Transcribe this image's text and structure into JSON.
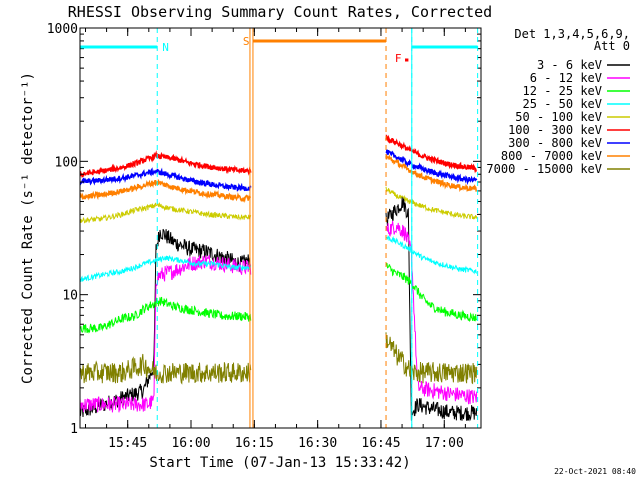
{
  "chart_data": {
    "type": "line",
    "title": "RHESSI Observing Summary Count Rates, Corrected",
    "xlabel": "Start Time (07-Jan-13 15:33:42)",
    "ylabel": "Corrected Count Rate (s⁻¹ detector⁻¹)",
    "yscale": "log",
    "ylim": [
      1,
      1000
    ],
    "xlim": [
      0,
      95
    ],
    "x_tick_labels": [
      {
        "x": 11.3,
        "label": "15:45"
      },
      {
        "x": 26.3,
        "label": "16:00"
      },
      {
        "x": 41.3,
        "label": "16:15"
      },
      {
        "x": 56.3,
        "label": "16:30"
      },
      {
        "x": 71.3,
        "label": "16:45"
      },
      {
        "x": 86.3,
        "label": "17:00"
      }
    ],
    "y_tick_labels": [
      {
        "y": 1,
        "label": "1"
      },
      {
        "y": 10,
        "label": "10"
      },
      {
        "y": 100,
        "label": "100"
      },
      {
        "y": 1000,
        "label": "1000"
      }
    ],
    "legend_header": [
      "Det 1,3,4,5,6,9,",
      "Att 0"
    ],
    "timestamp": "22-Oct-2021 08:40",
    "segments": [
      [
        0,
        40.5
      ],
      [
        72.5,
        94
      ]
    ],
    "annotations": [
      {
        "type": "cyan",
        "x": [
          0,
          18.3
        ],
        "label": "N",
        "label_x": 19.5
      },
      {
        "type": "orange",
        "x": [
          40.5,
          72.5
        ],
        "label": "S",
        "label_x": 38.6
      },
      {
        "type": "cyan",
        "x": [
          78.6,
          94.2
        ],
        "label": "",
        "label_x": 0
      },
      {
        "type": "red",
        "x": [
          77.0,
          77.8
        ],
        "label": "F",
        "label_x": 74.6
      }
    ],
    "series": [
      {
        "name": "3 - 6 keV",
        "color": "#000000",
        "points": [
          [
            0,
            1.3
          ],
          [
            15,
            1.9
          ],
          [
            17.5,
            2.9
          ],
          [
            18,
            22
          ],
          [
            19,
            30
          ],
          [
            22,
            25
          ],
          [
            26,
            22
          ],
          [
            30,
            21
          ],
          [
            34,
            19
          ],
          [
            38,
            17
          ],
          [
            40,
            18
          ],
          [
            72.5,
            36
          ],
          [
            75,
            44
          ],
          [
            76.5,
            50
          ],
          [
            77.8,
            40
          ],
          [
            78.5,
            1.3
          ],
          [
            80,
            1.5
          ],
          [
            83,
            1.4
          ],
          [
            88,
            1.3
          ],
          [
            94,
            1.3
          ]
        ]
      },
      {
        "name": "6 - 12 keV",
        "color": "#ff00ff",
        "points": [
          [
            0,
            1.5
          ],
          [
            13,
            1.5
          ],
          [
            16,
            1.5
          ],
          [
            17.5,
            1.6
          ],
          [
            18,
            13
          ],
          [
            19,
            14
          ],
          [
            22,
            15
          ],
          [
            26,
            17
          ],
          [
            30,
            18
          ],
          [
            34,
            17
          ],
          [
            38,
            16
          ],
          [
            40,
            16
          ],
          [
            72.5,
            30
          ],
          [
            75,
            33
          ],
          [
            77,
            29
          ],
          [
            78.5,
            21
          ],
          [
            80,
            2.0
          ],
          [
            88,
            1.8
          ],
          [
            94,
            1.7
          ]
        ]
      },
      {
        "name": "12 - 25 keV",
        "color": "#00ff00",
        "points": [
          [
            0,
            5.6
          ],
          [
            5,
            5.6
          ],
          [
            7,
            6.0
          ],
          [
            10,
            6.6
          ],
          [
            13,
            6.9
          ],
          [
            15,
            7.8
          ],
          [
            17,
            8.4
          ],
          [
            19,
            9.0
          ],
          [
            22,
            8.2
          ],
          [
            26,
            7.7
          ],
          [
            30,
            7.3
          ],
          [
            34,
            6.9
          ],
          [
            38,
            6.9
          ],
          [
            40,
            6.8
          ],
          [
            72.5,
            16.5
          ],
          [
            75,
            14.3
          ],
          [
            77,
            13.4
          ],
          [
            79,
            11.8
          ],
          [
            81,
            9.5
          ],
          [
            83,
            8.3
          ],
          [
            86,
            7.5
          ],
          [
            90,
            7.0
          ],
          [
            94,
            6.7
          ]
        ]
      },
      {
        "name": "25 - 50 keV",
        "color": "#00ffff",
        "points": [
          [
            0,
            13
          ],
          [
            5,
            14
          ],
          [
            10,
            15
          ],
          [
            13,
            16
          ],
          [
            15,
            17
          ],
          [
            18,
            18
          ],
          [
            20,
            19
          ],
          [
            24,
            18
          ],
          [
            28,
            17
          ],
          [
            32,
            17
          ],
          [
            36,
            16
          ],
          [
            40,
            16
          ],
          [
            72.5,
            27
          ],
          [
            75,
            25
          ],
          [
            77,
            23
          ],
          [
            79,
            21
          ],
          [
            81,
            19
          ],
          [
            84,
            17.5
          ],
          [
            87,
            16.5
          ],
          [
            90,
            15.5
          ],
          [
            94,
            15
          ]
        ]
      },
      {
        "name": "50 - 100 keV",
        "color": "#cccc00",
        "points": [
          [
            0,
            36
          ],
          [
            5,
            37
          ],
          [
            10,
            40
          ],
          [
            13,
            43
          ],
          [
            16,
            45
          ],
          [
            18,
            47
          ],
          [
            22,
            44
          ],
          [
            26,
            42
          ],
          [
            30,
            40
          ],
          [
            34,
            39
          ],
          [
            38,
            38
          ],
          [
            40,
            38
          ],
          [
            72.5,
            62
          ],
          [
            75,
            55
          ],
          [
            78,
            50
          ],
          [
            81,
            46
          ],
          [
            84,
            43
          ],
          [
            87,
            41
          ],
          [
            90,
            39
          ],
          [
            94,
            38
          ]
        ]
      },
      {
        "name": "100 - 300 keV",
        "color": "#ff0000",
        "points": [
          [
            0,
            80
          ],
          [
            5,
            84
          ],
          [
            10,
            90
          ],
          [
            13,
            96
          ],
          [
            16,
            104
          ],
          [
            18,
            110
          ],
          [
            22,
            105
          ],
          [
            26,
            97
          ],
          [
            30,
            92
          ],
          [
            34,
            88
          ],
          [
            38,
            85
          ],
          [
            40,
            85
          ],
          [
            72.5,
            150
          ],
          [
            75,
            138
          ],
          [
            78,
            122
          ],
          [
            81,
            110
          ],
          [
            84,
            102
          ],
          [
            87,
            96
          ],
          [
            90,
            92
          ],
          [
            94,
            88
          ]
        ]
      },
      {
        "name": "300 - 800 keV",
        "color": "#0000ff",
        "points": [
          [
            0,
            70
          ],
          [
            5,
            72
          ],
          [
            10,
            75
          ],
          [
            13,
            78
          ],
          [
            16,
            82
          ],
          [
            18,
            84
          ],
          [
            22,
            78
          ],
          [
            26,
            72
          ],
          [
            30,
            68
          ],
          [
            34,
            65
          ],
          [
            38,
            63
          ],
          [
            40,
            63
          ],
          [
            72.5,
            118
          ],
          [
            75,
            108
          ],
          [
            78,
            96
          ],
          [
            81,
            88
          ],
          [
            84,
            82
          ],
          [
            87,
            78
          ],
          [
            90,
            74
          ],
          [
            94,
            72
          ]
        ]
      },
      {
        "name": "800 - 7000 keV",
        "color": "#ff8000",
        "points": [
          [
            0,
            54
          ],
          [
            5,
            56
          ],
          [
            10,
            60
          ],
          [
            13,
            63
          ],
          [
            16,
            67
          ],
          [
            18,
            70
          ],
          [
            22,
            64
          ],
          [
            26,
            60
          ],
          [
            30,
            57
          ],
          [
            34,
            55
          ],
          [
            38,
            53
          ],
          [
            40,
            53
          ],
          [
            72.5,
            108
          ],
          [
            75,
            98
          ],
          [
            78,
            86
          ],
          [
            81,
            77
          ],
          [
            84,
            71
          ],
          [
            87,
            67
          ],
          [
            90,
            64
          ],
          [
            94,
            62
          ]
        ]
      },
      {
        "name": "7000 - 15000 keV",
        "color": "#808000",
        "points": [
          [
            0,
            2.6
          ],
          [
            5,
            2.6
          ],
          [
            10,
            2.6
          ],
          [
            15,
            3.0
          ],
          [
            18,
            2.6
          ],
          [
            22,
            2.6
          ],
          [
            26,
            2.6
          ],
          [
            30,
            2.6
          ],
          [
            34,
            2.6
          ],
          [
            38,
            2.6
          ],
          [
            40,
            2.6
          ],
          [
            72.5,
            4.7
          ],
          [
            75,
            3.5
          ],
          [
            77,
            3.0
          ],
          [
            78.5,
            2.6
          ],
          [
            84,
            2.6
          ],
          [
            88,
            2.6
          ],
          [
            94,
            2.6
          ]
        ]
      }
    ]
  }
}
